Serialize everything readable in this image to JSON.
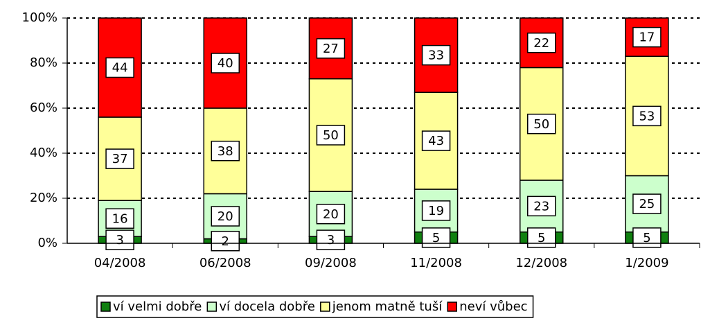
{
  "chart_data": {
    "type": "stacked_bar_100",
    "categories": [
      "04/2008",
      "06/2008",
      "09/2008",
      "11/2008",
      "12/2008",
      "1/2009"
    ],
    "series": [
      {
        "name": "ví velmi dobře",
        "color": "#108010",
        "values": [
          3,
          2,
          3,
          5,
          5,
          5
        ]
      },
      {
        "name": "ví docela dobře",
        "color": "#ccffcc",
        "values": [
          16,
          20,
          20,
          19,
          23,
          25
        ]
      },
      {
        "name": "jenom matně tuší",
        "color": "#ffff99",
        "values": [
          37,
          38,
          50,
          43,
          50,
          53
        ]
      },
      {
        "name": "neví vůbec",
        "color": "#ff0000",
        "values": [
          44,
          40,
          27,
          33,
          22,
          17
        ]
      }
    ],
    "ylim": [
      0,
      100
    ],
    "yticks": [
      {
        "value": 0,
        "label": "0%"
      },
      {
        "value": 20,
        "label": "20%"
      },
      {
        "value": 40,
        "label": "40%"
      },
      {
        "value": 60,
        "label": "60%"
      },
      {
        "value": 80,
        "label": "80%"
      },
      {
        "value": 100,
        "label": "100%"
      }
    ],
    "grid": true,
    "legend": "bottom"
  }
}
